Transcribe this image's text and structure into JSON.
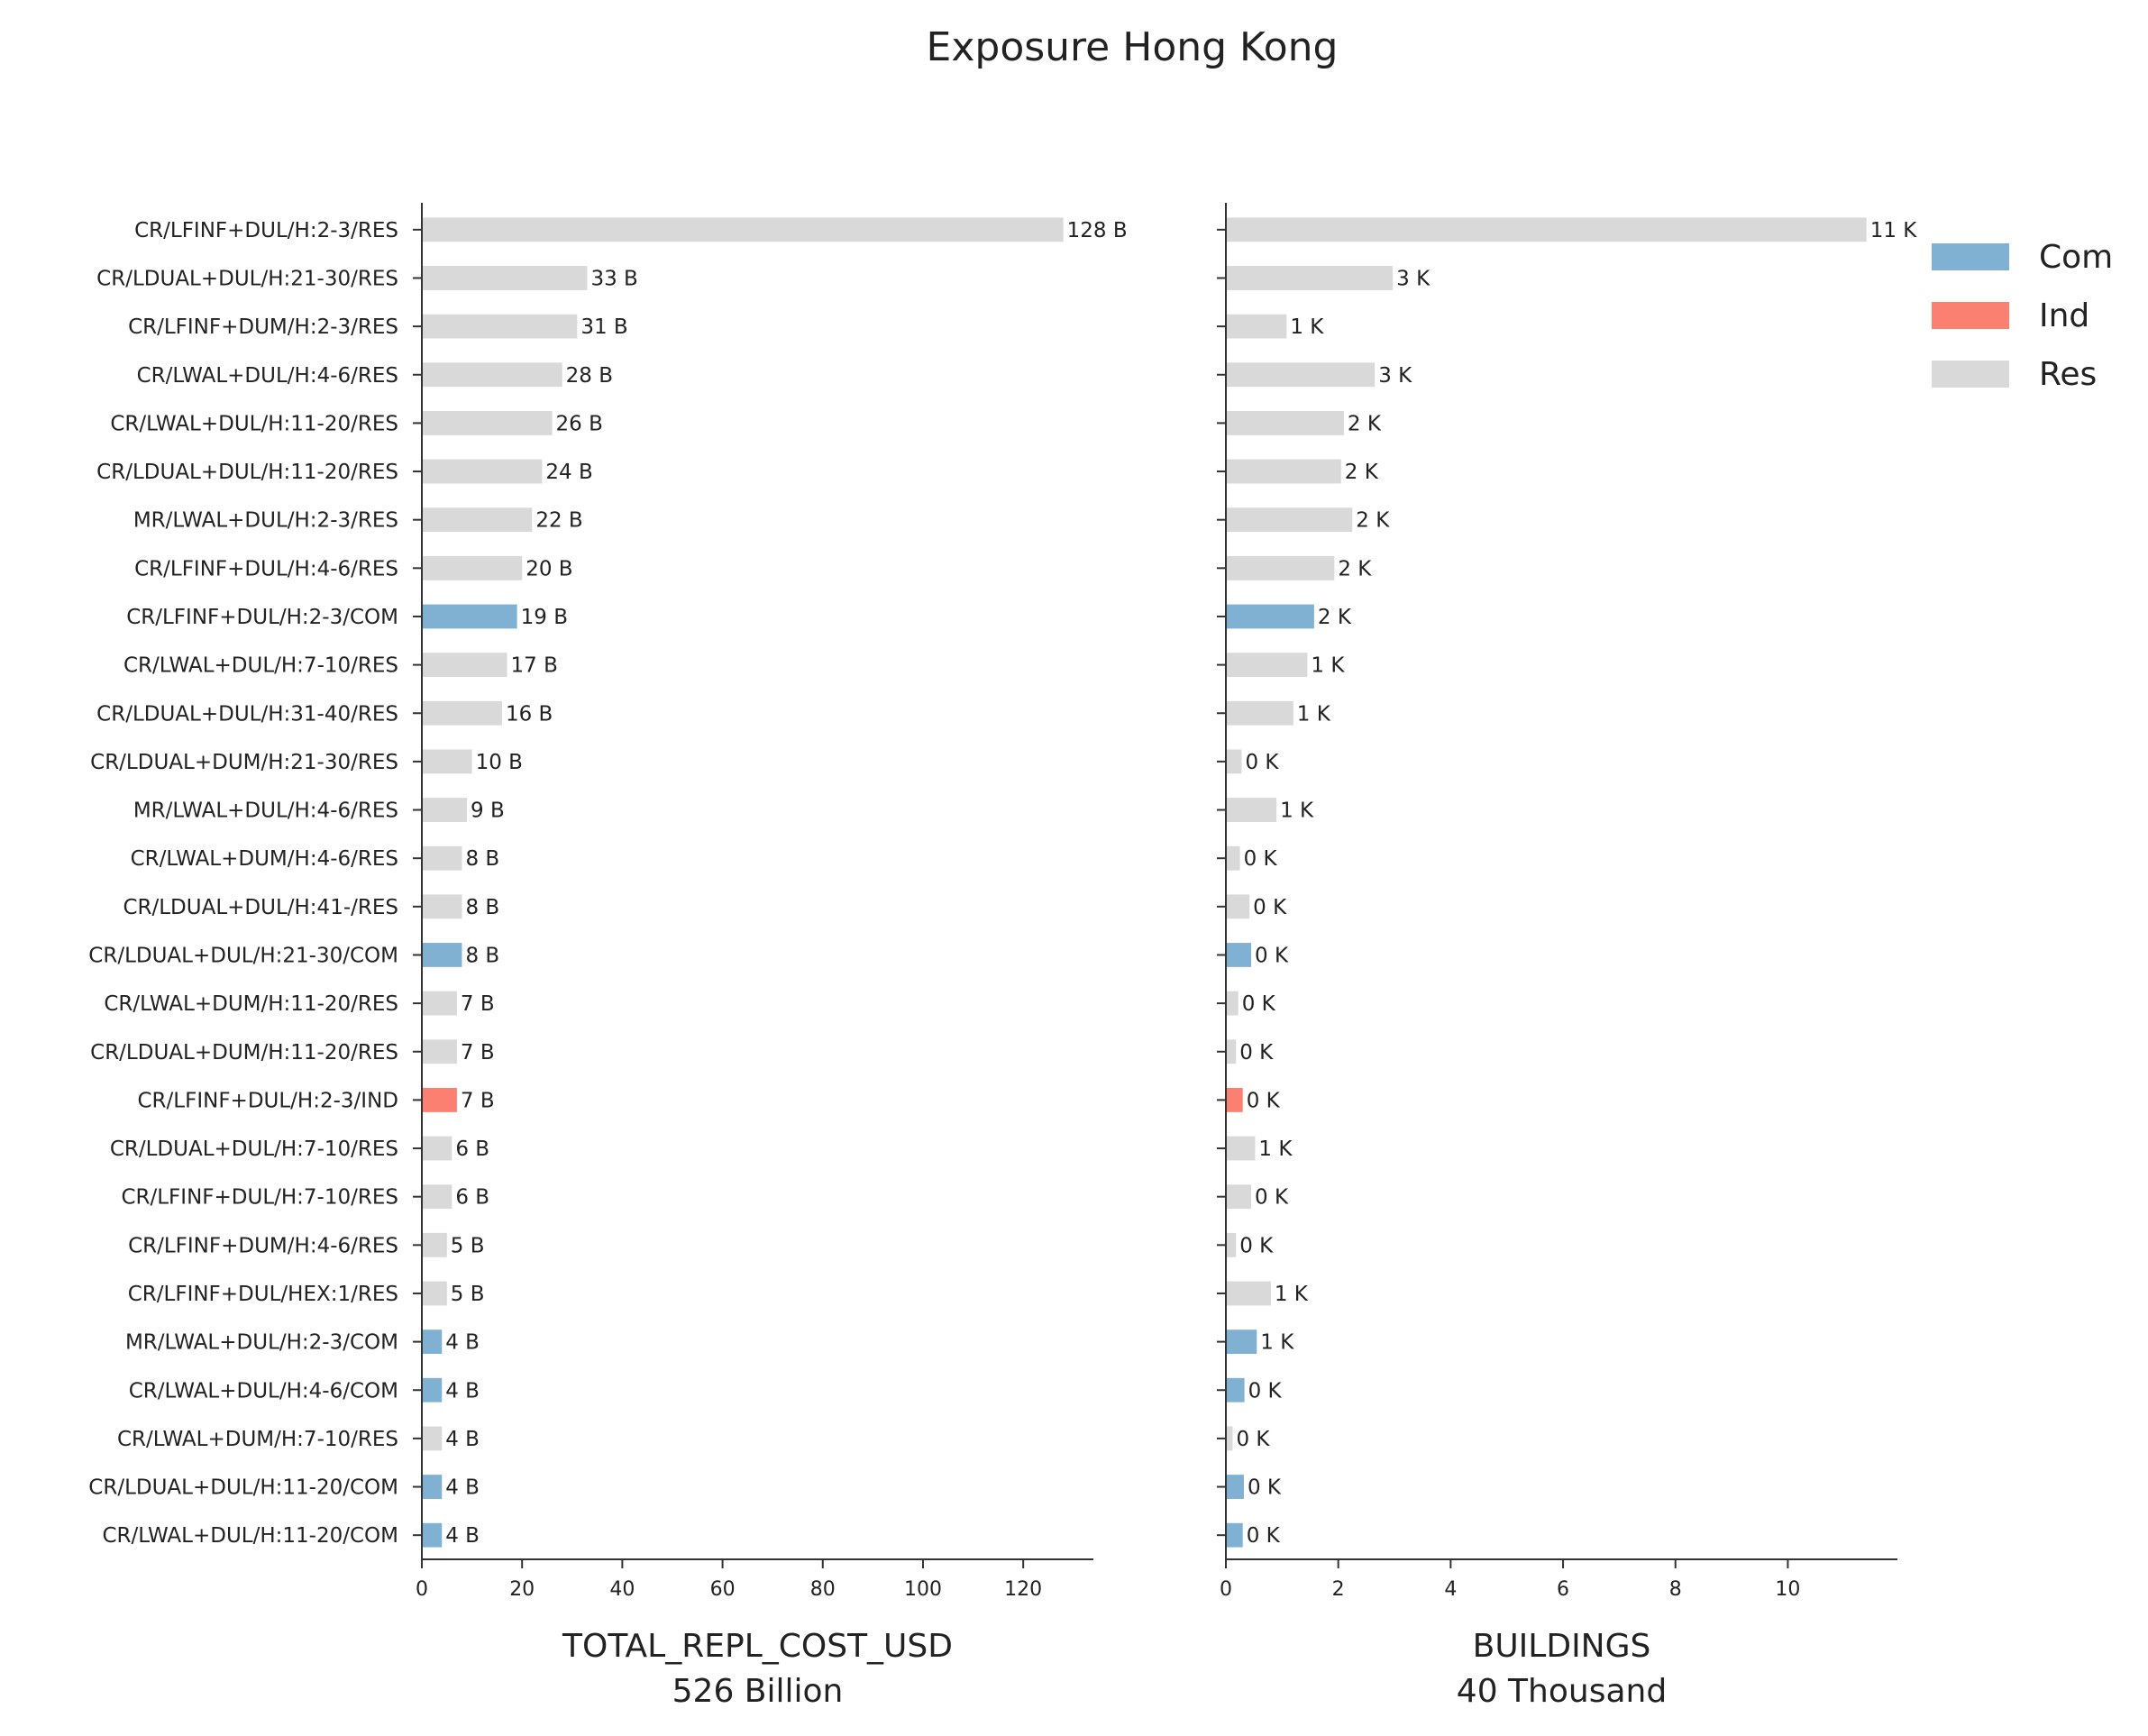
{
  "title": "Exposure Hong Kong",
  "legend": {
    "position": "top-right",
    "items": [
      {
        "label": "Com",
        "color": "#80b1d3"
      },
      {
        "label": "Ind",
        "color": "#fb8072"
      },
      {
        "label": "Res",
        "color": "#d9d9d9"
      }
    ]
  },
  "chart_data": [
    {
      "type": "bar",
      "orientation": "horizontal",
      "xlabel": "TOTAL_REPL_COST_USD",
      "subtitle": "526 Billion",
      "xlim": [
        0,
        134
      ],
      "xticks": [
        0,
        20,
        40,
        60,
        80,
        100,
        120
      ],
      "grid": false,
      "categories": [
        "CR/LFINF+DUL/H:2-3/RES",
        "CR/LDUAL+DUL/H:21-30/RES",
        "CR/LFINF+DUM/H:2-3/RES",
        "CR/LWAL+DUL/H:4-6/RES",
        "CR/LWAL+DUL/H:11-20/RES",
        "CR/LDUAL+DUL/H:11-20/RES",
        "MR/LWAL+DUL/H:2-3/RES",
        "CR/LFINF+DUL/H:4-6/RES",
        "CR/LFINF+DUL/H:2-3/COM",
        "CR/LWAL+DUL/H:7-10/RES",
        "CR/LDUAL+DUL/H:31-40/RES",
        "CR/LDUAL+DUM/H:21-30/RES",
        "MR/LWAL+DUL/H:4-6/RES",
        "CR/LWAL+DUM/H:4-6/RES",
        "CR/LDUAL+DUL/H:41-/RES",
        "CR/LDUAL+DUL/H:21-30/COM",
        "CR/LWAL+DUM/H:11-20/RES",
        "CR/LDUAL+DUM/H:11-20/RES",
        "CR/LFINF+DUL/H:2-3/IND",
        "CR/LDUAL+DUL/H:7-10/RES",
        "CR/LFINF+DUL/H:7-10/RES",
        "CR/LFINF+DUM/H:4-6/RES",
        "CR/LFINF+DUL/HEX:1/RES",
        "MR/LWAL+DUL/H:2-3/COM",
        "CR/LWAL+DUL/H:4-6/COM",
        "CR/LWAL+DUM/H:7-10/RES",
        "CR/LDUAL+DUL/H:11-20/COM",
        "CR/LWAL+DUL/H:11-20/COM"
      ],
      "classes": [
        "Res",
        "Res",
        "Res",
        "Res",
        "Res",
        "Res",
        "Res",
        "Res",
        "Com",
        "Res",
        "Res",
        "Res",
        "Res",
        "Res",
        "Res",
        "Com",
        "Res",
        "Res",
        "Ind",
        "Res",
        "Res",
        "Res",
        "Res",
        "Com",
        "Com",
        "Res",
        "Com",
        "Com"
      ],
      "values": [
        128,
        33,
        31,
        28,
        26,
        24,
        22,
        20,
        19,
        17,
        16,
        10,
        9,
        8,
        8,
        8,
        7,
        7,
        7,
        6,
        6,
        5,
        5,
        4,
        4,
        4,
        4,
        4
      ],
      "value_labels": [
        "128 B",
        "33 B",
        "31 B",
        "28 B",
        "26 B",
        "24 B",
        "22 B",
        "20 B",
        "19 B",
        "17 B",
        "16 B",
        "10 B",
        "9 B",
        "8 B",
        "8 B",
        "8 B",
        "7 B",
        "7 B",
        "7 B",
        "6 B",
        "6 B",
        "5 B",
        "5 B",
        "4 B",
        "4 B",
        "4 B",
        "4 B",
        "4 B"
      ]
    },
    {
      "type": "bar",
      "orientation": "horizontal",
      "xlabel": "BUILDINGS",
      "subtitle": "40 Thousand",
      "xlim": [
        0,
        11.95
      ],
      "xticks": [
        0,
        2,
        4,
        6,
        8,
        10
      ],
      "grid": false,
      "categories": [
        "CR/LFINF+DUL/H:2-3/RES",
        "CR/LDUAL+DUL/H:21-30/RES",
        "CR/LFINF+DUM/H:2-3/RES",
        "CR/LWAL+DUL/H:4-6/RES",
        "CR/LWAL+DUL/H:11-20/RES",
        "CR/LDUAL+DUL/H:11-20/RES",
        "MR/LWAL+DUL/H:2-3/RES",
        "CR/LFINF+DUL/H:4-6/RES",
        "CR/LFINF+DUL/H:2-3/COM",
        "CR/LWAL+DUL/H:7-10/RES",
        "CR/LDUAL+DUL/H:31-40/RES",
        "CR/LDUAL+DUM/H:21-30/RES",
        "MR/LWAL+DUL/H:4-6/RES",
        "CR/LWAL+DUM/H:4-6/RES",
        "CR/LDUAL+DUL/H:41-/RES",
        "CR/LDUAL+DUL/H:21-30/COM",
        "CR/LWAL+DUM/H:11-20/RES",
        "CR/LDUAL+DUM/H:11-20/RES",
        "CR/LFINF+DUL/H:2-3/IND",
        "CR/LDUAL+DUL/H:7-10/RES",
        "CR/LFINF+DUL/H:7-10/RES",
        "CR/LFINF+DUM/H:4-6/RES",
        "CR/LFINF+DUL/HEX:1/RES",
        "MR/LWAL+DUL/H:2-3/COM",
        "CR/LWAL+DUL/H:4-6/COM",
        "CR/LWAL+DUM/H:7-10/RES",
        "CR/LDUAL+DUL/H:11-20/COM",
        "CR/LWAL+DUL/H:11-20/COM"
      ],
      "classes": [
        "Res",
        "Res",
        "Res",
        "Res",
        "Res",
        "Res",
        "Res",
        "Res",
        "Com",
        "Res",
        "Res",
        "Res",
        "Res",
        "Res",
        "Res",
        "Com",
        "Res",
        "Res",
        "Ind",
        "Res",
        "Res",
        "Res",
        "Res",
        "Com",
        "Com",
        "Res",
        "Com",
        "Com"
      ],
      "values": [
        11.4,
        2.97,
        1.08,
        2.65,
        2.1,
        2.05,
        2.25,
        1.93,
        1.57,
        1.45,
        1.2,
        0.28,
        0.9,
        0.25,
        0.42,
        0.45,
        0.22,
        0.18,
        0.3,
        0.52,
        0.45,
        0.18,
        0.8,
        0.55,
        0.33,
        0.12,
        0.32,
        0.3
      ],
      "value_labels": [
        "11 K",
        "3 K",
        "1 K",
        "3 K",
        "2 K",
        "2 K",
        "2 K",
        "2 K",
        "2 K",
        "1 K",
        "1 K",
        "0 K",
        "1 K",
        "0 K",
        "0 K",
        "0 K",
        "0 K",
        "0 K",
        "0 K",
        "1 K",
        "0 K",
        "0 K",
        "1 K",
        "1 K",
        "0 K",
        "0 K",
        "0 K",
        "0 K"
      ]
    }
  ]
}
